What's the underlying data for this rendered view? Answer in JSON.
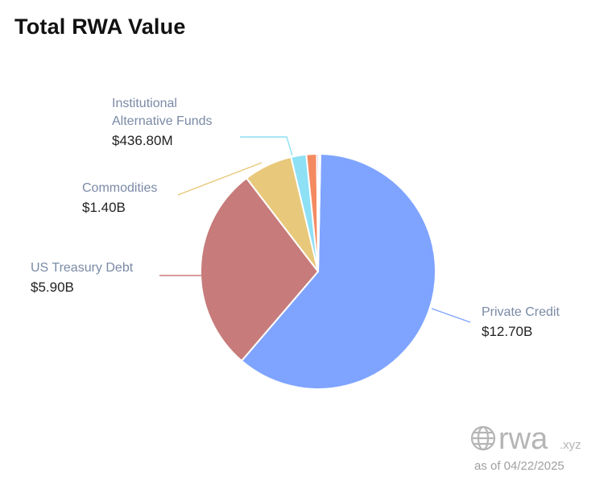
{
  "title": "Total RWA Value",
  "as_of": "as of 04/22/2025",
  "watermark": {
    "text": "rwa",
    "suffix": ".xyz",
    "icon": "globe-icon"
  },
  "chart_data": {
    "type": "pie",
    "title": "Total RWA Value",
    "slices": [
      {
        "name": "Private Credit",
        "value": 12.7,
        "display": "$12.70B",
        "color": "#7fa4ff",
        "name_lines": [
          "Private Credit"
        ]
      },
      {
        "name": "US Treasury Debt",
        "value": 5.9,
        "display": "$5.90B",
        "color": "#c77b7b",
        "name_lines": [
          "US Treasury Debt"
        ]
      },
      {
        "name": "Commodities",
        "value": 1.4,
        "display": "$1.40B",
        "color": "#e8c87a",
        "name_lines": [
          "Commodities"
        ]
      },
      {
        "name": "Institutional Alternative Funds",
        "value": 0.4368,
        "display": "$436.80M",
        "color": "#8ee0f5",
        "name_lines": [
          "Institutional",
          "Alternative Funds"
        ]
      },
      {
        "name": "",
        "value": 0.3,
        "display": "",
        "color": "#f48a60",
        "name_lines": []
      },
      {
        "name": "",
        "value": 0.06,
        "display": "",
        "color": "#b9b3d6",
        "name_lines": []
      },
      {
        "name": "",
        "value": 0.04,
        "display": "",
        "color": "#c8c8c8",
        "name_lines": []
      }
    ]
  }
}
